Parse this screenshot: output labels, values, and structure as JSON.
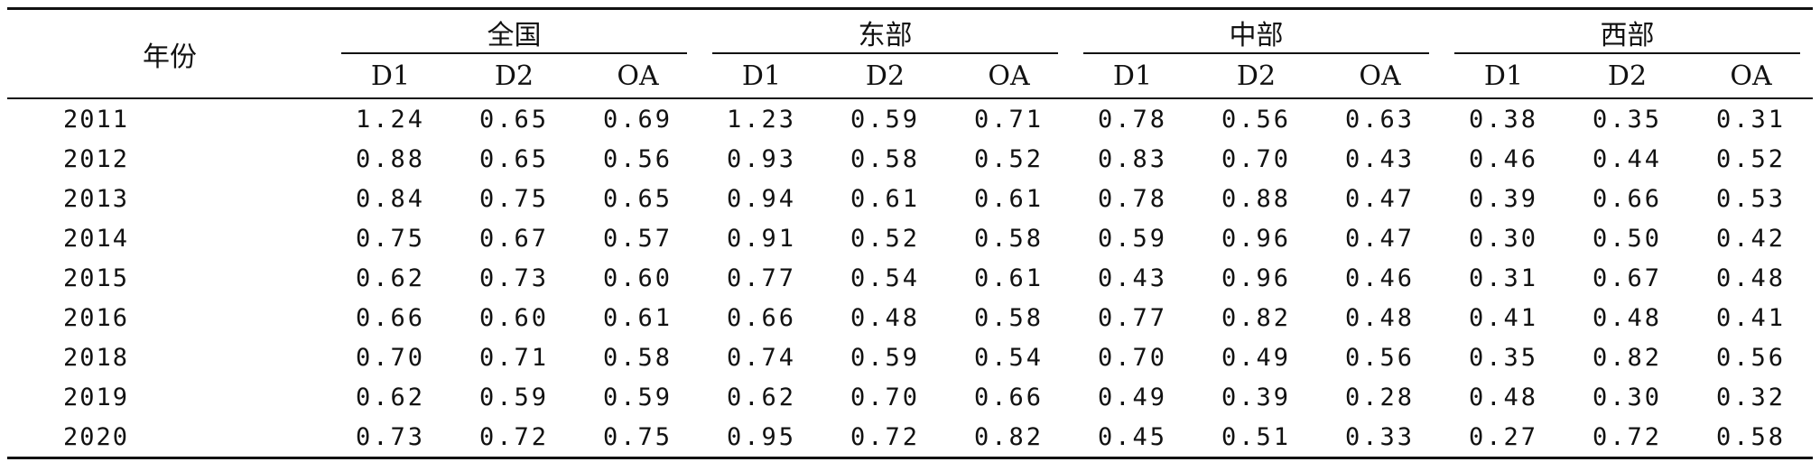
{
  "table": {
    "year_header": "年份",
    "groups": [
      {
        "label": "全国"
      },
      {
        "label": "东部"
      },
      {
        "label": "中部"
      },
      {
        "label": "西部"
      }
    ],
    "sub_headers": [
      "D1",
      "D2",
      "OA"
    ],
    "rows": [
      {
        "year": "2011",
        "values": [
          "1.24",
          "0.65",
          "0.69",
          "1.23",
          "0.59",
          "0.71",
          "0.78",
          "0.56",
          "0.63",
          "0.38",
          "0.35",
          "0.31"
        ]
      },
      {
        "year": "2012",
        "values": [
          "0.88",
          "0.65",
          "0.56",
          "0.93",
          "0.58",
          "0.52",
          "0.83",
          "0.70",
          "0.43",
          "0.46",
          "0.44",
          "0.52"
        ]
      },
      {
        "year": "2013",
        "values": [
          "0.84",
          "0.75",
          "0.65",
          "0.94",
          "0.61",
          "0.61",
          "0.78",
          "0.88",
          "0.47",
          "0.39",
          "0.66",
          "0.53"
        ]
      },
      {
        "year": "2014",
        "values": [
          "0.75",
          "0.67",
          "0.57",
          "0.91",
          "0.52",
          "0.58",
          "0.59",
          "0.96",
          "0.47",
          "0.30",
          "0.50",
          "0.42"
        ]
      },
      {
        "year": "2015",
        "values": [
          "0.62",
          "0.73",
          "0.60",
          "0.77",
          "0.54",
          "0.61",
          "0.43",
          "0.96",
          "0.46",
          "0.31",
          "0.67",
          "0.48"
        ]
      },
      {
        "year": "2016",
        "values": [
          "0.66",
          "0.60",
          "0.61",
          "0.66",
          "0.48",
          "0.58",
          "0.77",
          "0.82",
          "0.48",
          "0.41",
          "0.48",
          "0.41"
        ]
      },
      {
        "year": "2018",
        "values": [
          "0.70",
          "0.71",
          "0.58",
          "0.74",
          "0.59",
          "0.54",
          "0.70",
          "0.49",
          "0.56",
          "0.35",
          "0.82",
          "0.56"
        ]
      },
      {
        "year": "2019",
        "values": [
          "0.62",
          "0.59",
          "0.59",
          "0.62",
          "0.70",
          "0.66",
          "0.49",
          "0.39",
          "0.28",
          "0.48",
          "0.30",
          "0.32"
        ]
      },
      {
        "year": "2020",
        "values": [
          "0.73",
          "0.72",
          "0.75",
          "0.95",
          "0.72",
          "0.82",
          "0.45",
          "0.51",
          "0.33",
          "0.27",
          "0.72",
          "0.58"
        ]
      }
    ]
  }
}
